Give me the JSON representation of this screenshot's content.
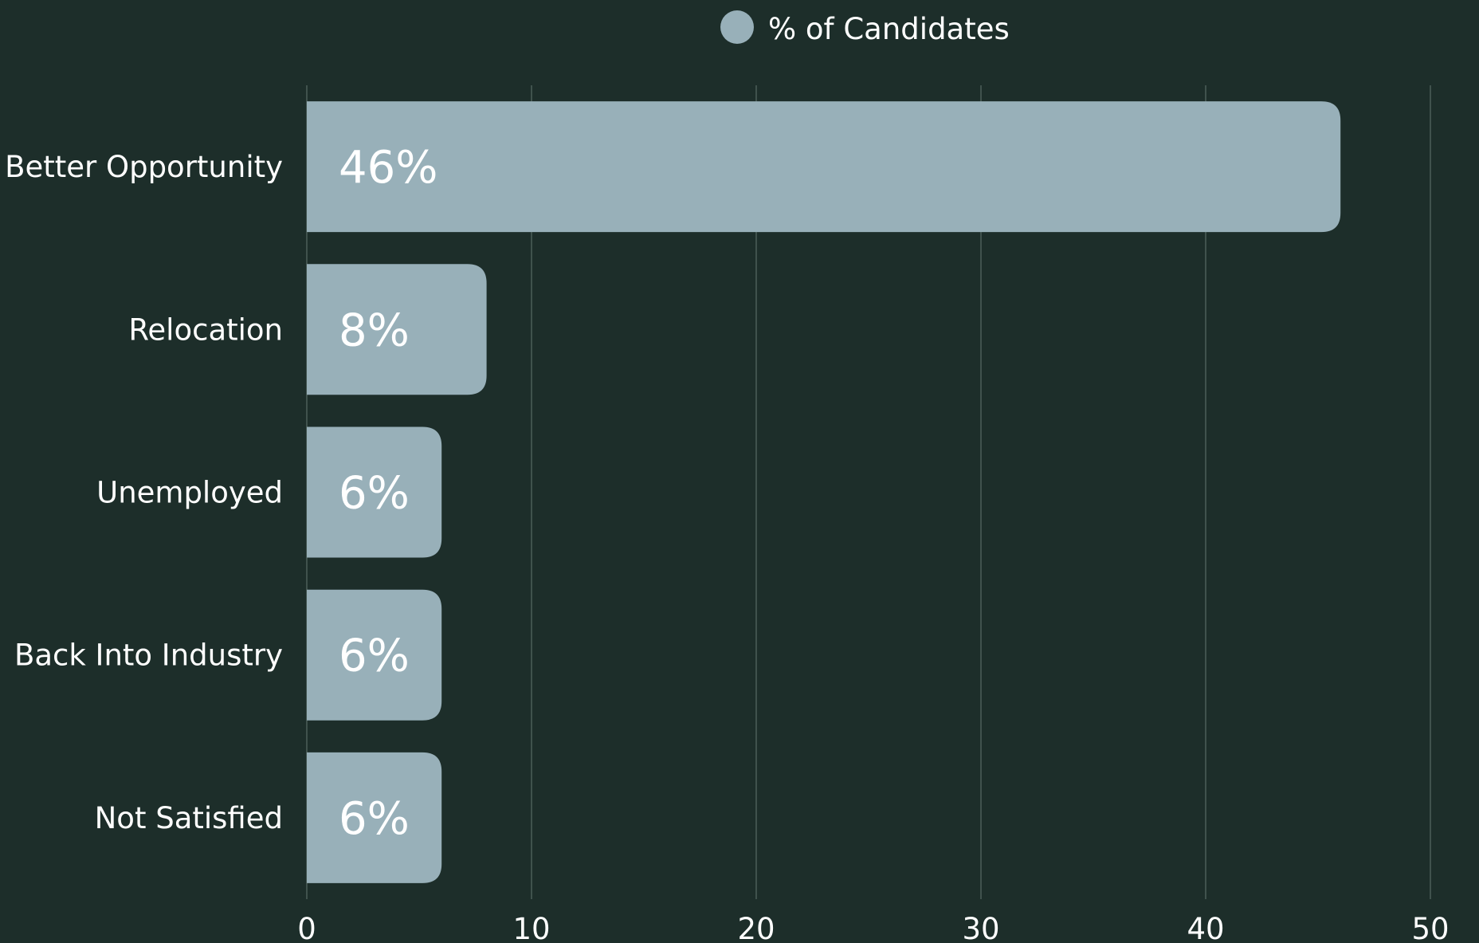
{
  "chart_data": {
    "type": "bar",
    "orientation": "horizontal",
    "categories": [
      "Better Opportunity",
      "Relocation",
      "Unemployed",
      "Back Into Industry",
      "Not Satisfied"
    ],
    "series": [
      {
        "name": "% of Candidates",
        "values": [
          46,
          8,
          6,
          6,
          6
        ],
        "data_labels": [
          "46%",
          "8%",
          "6%",
          "6%",
          "6%"
        ]
      }
    ],
    "xlim": [
      0,
      50
    ],
    "x_ticks": [
      0,
      10,
      20,
      30,
      40,
      50
    ],
    "grid": true,
    "legend": "top-center",
    "colors": {
      "background": "#1d2e2a",
      "bar": "#98b0b9",
      "grid": "#4c5e59",
      "text": "#ffffff"
    }
  }
}
